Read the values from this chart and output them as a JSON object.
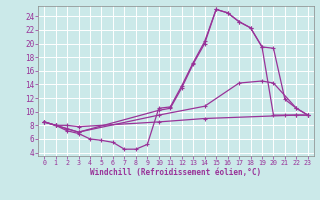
{
  "background_color": "#cbe9e9",
  "grid_color": "#ffffff",
  "line_color": "#993399",
  "marker_color": "#993399",
  "xlabel": "Windchill (Refroidissement éolien,°C)",
  "xlim": [
    -0.5,
    23.5
  ],
  "ylim": [
    3.5,
    25.5
  ],
  "xticks": [
    0,
    1,
    2,
    3,
    4,
    5,
    6,
    7,
    8,
    9,
    10,
    11,
    12,
    13,
    14,
    15,
    16,
    17,
    18,
    19,
    20,
    21,
    22,
    23
  ],
  "yticks": [
    4,
    6,
    8,
    10,
    12,
    14,
    16,
    18,
    20,
    22,
    24
  ],
  "lines": [
    {
      "x": [
        0,
        1,
        2,
        3,
        4,
        5,
        6,
        7,
        8,
        9,
        10,
        11,
        12,
        13,
        14,
        15,
        16,
        17,
        18,
        19,
        20,
        21,
        22,
        23
      ],
      "y": [
        8.5,
        8.0,
        7.2,
        6.8,
        6.0,
        5.8,
        5.5,
        4.5,
        4.5,
        5.2,
        10.5,
        10.7,
        13.8,
        17.2,
        20.3,
        25.0,
        24.5,
        23.2,
        22.3,
        19.5,
        9.5,
        9.5,
        9.5,
        9.5
      ]
    },
    {
      "x": [
        0,
        1,
        2,
        3,
        10,
        11,
        12,
        13,
        14,
        15,
        16,
        17,
        18,
        19,
        20,
        21,
        22,
        23
      ],
      "y": [
        8.5,
        8.0,
        7.5,
        7.0,
        10.2,
        10.5,
        13.5,
        17.0,
        20.0,
        25.0,
        24.5,
        23.2,
        22.3,
        19.5,
        19.3,
        11.8,
        10.5,
        9.5
      ]
    },
    {
      "x": [
        0,
        1,
        2,
        3,
        10,
        14,
        17,
        19,
        20,
        22,
        23
      ],
      "y": [
        8.5,
        8.0,
        7.5,
        7.0,
        9.5,
        10.8,
        14.2,
        14.5,
        14.2,
        10.5,
        9.5
      ]
    },
    {
      "x": [
        0,
        1,
        2,
        3,
        10,
        14,
        22,
        23
      ],
      "y": [
        8.5,
        8.0,
        8.0,
        7.8,
        8.5,
        9.0,
        9.5,
        9.5
      ]
    }
  ]
}
